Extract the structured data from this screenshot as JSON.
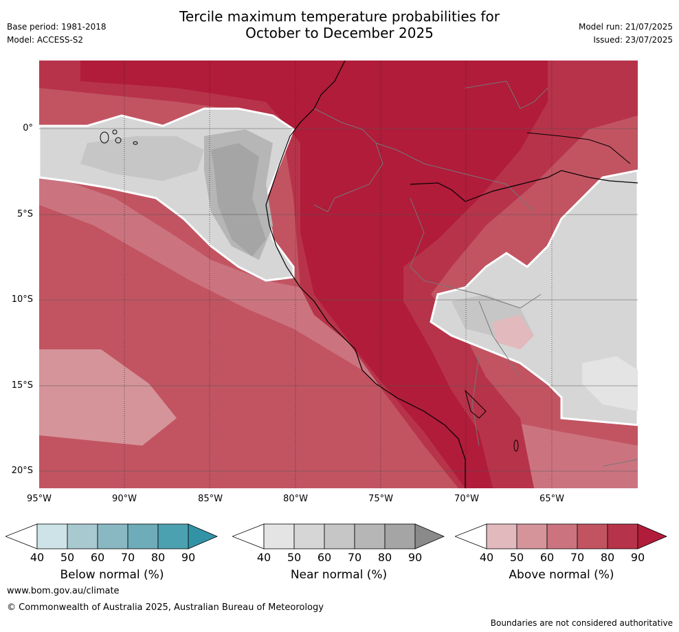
{
  "title": {
    "line1": "Tercile maximum temperature probabilities for",
    "line2": "October to December 2025"
  },
  "meta_left": {
    "base_period": "Base period: 1981-2018",
    "model": "Model: ACCESS-S2"
  },
  "meta_right": {
    "model_run": "Model run: 21/07/2025",
    "issued": "Issued: 23/07/2025"
  },
  "map": {
    "lat_labels": [
      "0°",
      "5°S",
      "10°S",
      "15°S",
      "20°S"
    ],
    "lon_labels": [
      "95°W",
      "90°W",
      "85°W",
      "80°W",
      "75°W",
      "70°W",
      "65°W"
    ]
  },
  "colorbars": [
    {
      "label": "Below normal (%)",
      "ticks": [
        "40",
        "50",
        "60",
        "70",
        "80",
        "90"
      ],
      "colors": [
        "#cde3e7",
        "#a7c9cf",
        "#89b8c3",
        "#6dacb8",
        "#4ca1b0",
        "#3293a6"
      ]
    },
    {
      "label": "Near normal (%)",
      "ticks": [
        "40",
        "50",
        "60",
        "70",
        "80",
        "90"
      ],
      "colors": [
        "#e4e4e4",
        "#d6d6d6",
        "#c6c6c6",
        "#b6b6b6",
        "#a5a5a5",
        "#8a8a8a"
      ]
    },
    {
      "label": "Above normal (%)",
      "ticks": [
        "40",
        "50",
        "60",
        "70",
        "80",
        "90"
      ],
      "colors": [
        "#e2b9bd",
        "#d5949a",
        "#cb7480",
        "#c25462",
        "#b7334a",
        "#b01c3a"
      ]
    }
  ],
  "footer": {
    "url": "www.bom.gov.au/climate",
    "copyright": "© Commonwealth of Australia 2025, Australian Bureau of Meteorology",
    "disclaimer": "Boundaries are not considered authoritative"
  }
}
